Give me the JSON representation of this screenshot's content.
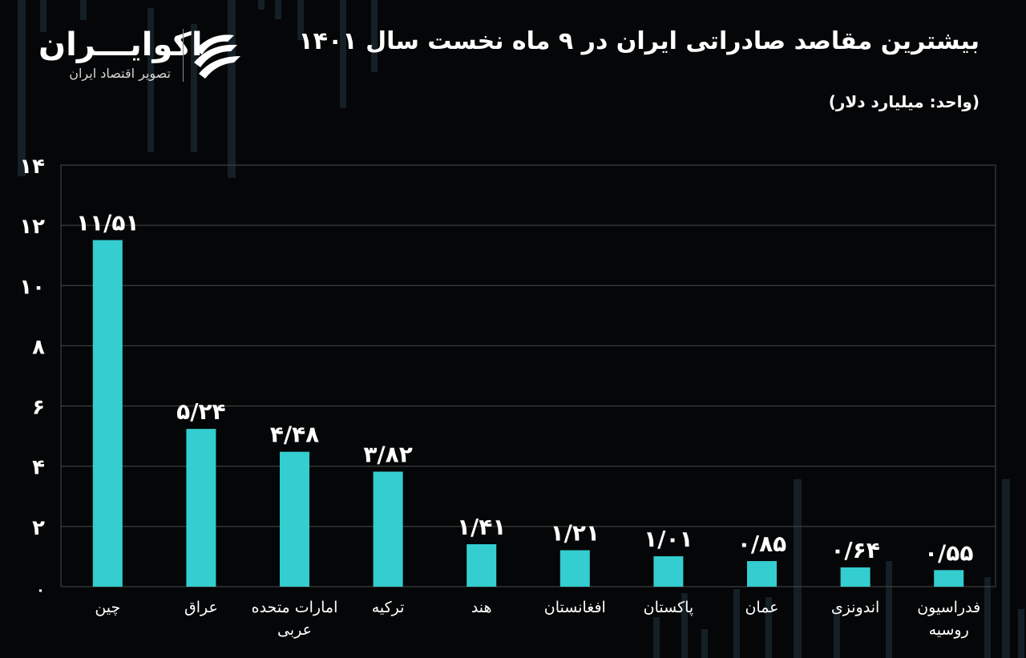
{
  "header": {
    "title": "بیشترین مقاصد صادراتی ایران در ۹ ماه نخست سال ۱۴۰۱",
    "unit_note": "(واحد: میلیارد دلار)"
  },
  "logo": {
    "name": "اکوایـــران",
    "tagline": "تصویر اقتصاد ایران"
  },
  "colors": {
    "background": "#050607",
    "bar": "#34cdd0",
    "grid": "#4a4a4a",
    "text": "#ffffff"
  },
  "chart_data": {
    "type": "bar",
    "categories": [
      [
        "چین"
      ],
      [
        "عراق"
      ],
      [
        "امارات متحده",
        "عربی"
      ],
      [
        "ترکیه"
      ],
      [
        "هند"
      ],
      [
        "افغانستان"
      ],
      [
        "پاکستان"
      ],
      [
        "عمان"
      ],
      [
        "اندونزی"
      ],
      [
        "فدراسیون",
        "روسیه"
      ]
    ],
    "values": [
      11.51,
      5.24,
      4.48,
      3.82,
      1.41,
      1.21,
      1.01,
      0.85,
      0.64,
      0.55
    ],
    "data_labels": [
      "۱۱/۵۱",
      "۵/۲۴",
      "۴/۴۸",
      "۳/۸۲",
      "۱/۴۱",
      "۱/۲۱",
      "۱/۰۱",
      "۰/۸۵",
      "۰/۶۴",
      "۰/۵۵"
    ],
    "yticks": [
      0,
      2,
      4,
      6,
      8,
      10,
      12,
      14
    ],
    "ytick_labels": [
      "۰",
      "۲",
      "۴",
      "۶",
      "۸",
      "۱۰",
      "۱۲",
      "۱۴"
    ],
    "ylim": [
      0,
      14
    ],
    "grid": true,
    "legend": "none"
  }
}
